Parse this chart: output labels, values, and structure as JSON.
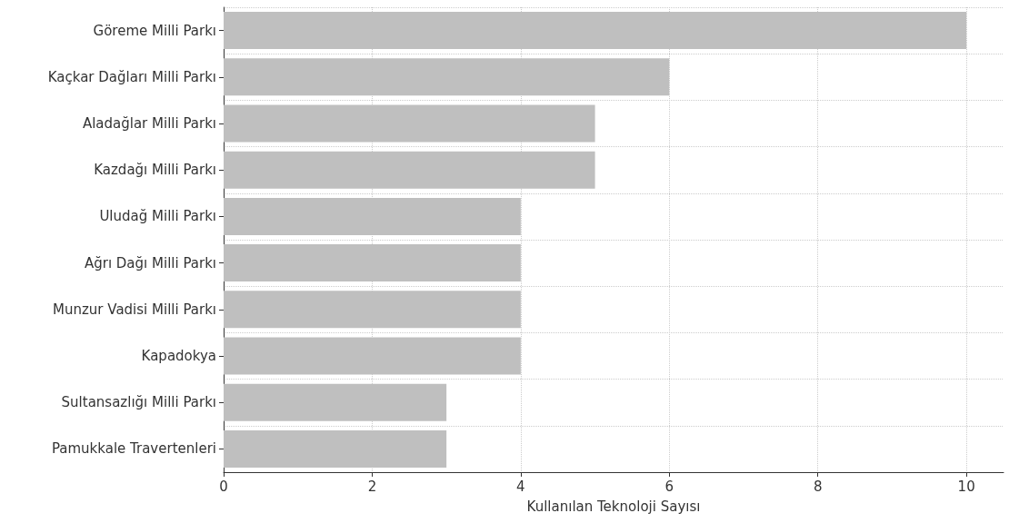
{
  "chart_data": {
    "type": "bar",
    "orientation": "horizontal",
    "xlabel": "Kullanılan Teknoloji Sayısı",
    "categories": [
      "Göreme Milli Parkı",
      "Kaçkar Dağları Milli Parkı",
      "Aladağlar Milli Parkı",
      "Kazdağı Milli Parkı",
      "Uludağ Milli Parkı",
      "Ağrı Dağı Milli Parkı",
      "Munzur Vadisi Milli Parkı",
      "Kapadokya",
      "Sultansazlığı Milli Parkı",
      "Pamukkale Travertenleri"
    ],
    "values": [
      10,
      6,
      5,
      5,
      4,
      4,
      4,
      4,
      3,
      3
    ],
    "color": "#bfbfbf",
    "xlim": [
      0,
      10.5
    ],
    "xticks": [
      0,
      2,
      4,
      6,
      8,
      10
    ],
    "grid": true,
    "line_style": "dotted"
  }
}
